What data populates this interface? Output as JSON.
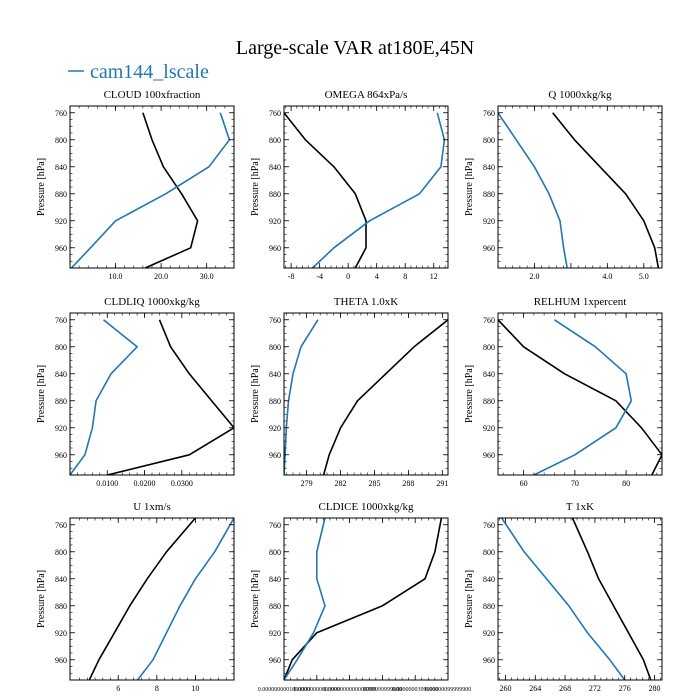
{
  "figure": {
    "title": "Large-scale VAR at180E,45N",
    "legend": [
      {
        "name": "cam144_lscale",
        "color": "#1f77b4"
      }
    ]
  },
  "colors": {
    "black_series": "#000000",
    "blue_series": "#1f77b4"
  },
  "chart_data": [
    {
      "type": "line",
      "title": "CLOUD  100xfraction",
      "ylabel": "Pressure [hPa]",
      "ylim": [
        990,
        750
      ],
      "yticks": [
        760,
        800,
        840,
        880,
        920,
        960
      ],
      "ytick_labels": [
        "760",
        "800",
        "840",
        "880",
        "920",
        "960"
      ],
      "xlim": [
        0,
        36
      ],
      "xticks": [
        10,
        20,
        30
      ],
      "xtick_labels": [
        "10.0",
        "20.0",
        "30.0"
      ],
      "y": [
        760,
        800,
        840,
        880,
        920,
        960,
        990
      ],
      "series": [
        {
          "color": "#000000",
          "values": [
            16,
            18,
            20.5,
            24.5,
            28,
            26.5,
            16.5
          ]
        },
        {
          "color": "#1f77b4",
          "values": [
            33,
            35,
            30.5,
            21,
            10,
            4.5,
            0.3
          ]
        }
      ]
    },
    {
      "type": "line",
      "title": "OMEGA  864xPa/s",
      "ylabel": "Pressure [hPa]",
      "ylim": [
        990,
        750
      ],
      "yticks": [
        760,
        800,
        840,
        880,
        920,
        960
      ],
      "ytick_labels": [
        "760",
        "800",
        "840",
        "880",
        "920",
        "960"
      ],
      "xlim": [
        -9,
        14
      ],
      "xticks": [
        -8,
        -4,
        0,
        4,
        8,
        12
      ],
      "xtick_labels": [
        "-8",
        "-4",
        "0",
        "4",
        "8",
        "12"
      ],
      "y": [
        760,
        800,
        840,
        880,
        920,
        960,
        990
      ],
      "series": [
        {
          "color": "#000000",
          "values": [
            -9,
            -6,
            -2,
            1,
            2.5,
            2.5,
            1
          ]
        },
        {
          "color": "#1f77b4",
          "values": [
            12.5,
            13.5,
            13,
            10,
            3,
            -2,
            -5
          ]
        }
      ]
    },
    {
      "type": "line",
      "title": "Q  1000xkg/kg",
      "ylabel": "Pressure [hPa]",
      "ylim": [
        990,
        750
      ],
      "yticks": [
        760,
        800,
        840,
        880,
        920,
        960
      ],
      "ytick_labels": [
        "760",
        "800",
        "840",
        "880",
        "920",
        "960"
      ],
      "xlim": [
        1,
        5.5
      ],
      "xticks": [
        2,
        3,
        4,
        5
      ],
      "xtick_labels": [
        "2.0",
        "",
        "4.0",
        "5.0"
      ],
      "y": [
        760,
        800,
        840,
        880,
        920,
        960,
        990
      ],
      "series": [
        {
          "color": "#000000",
          "values": [
            2.5,
            3.1,
            3.8,
            4.5,
            5.0,
            5.3,
            5.4
          ]
        },
        {
          "color": "#1f77b4",
          "values": [
            1.0,
            1.5,
            2.0,
            2.4,
            2.7,
            2.8,
            2.9
          ]
        }
      ]
    },
    {
      "type": "line",
      "title": "CLDLIQ  1000xkg/kg",
      "ylabel": "Pressure [hPa]",
      "ylim": [
        990,
        750
      ],
      "yticks": [
        760,
        800,
        840,
        880,
        920,
        960
      ],
      "ytick_labels": [
        "760",
        "800",
        "840",
        "880",
        "920",
        "960"
      ],
      "xlim": [
        0,
        0.044
      ],
      "xticks": [
        0.01,
        0.02,
        0.03
      ],
      "xtick_labels": [
        "0.0100",
        "0.0200",
        "0.0300"
      ],
      "y": [
        760,
        800,
        840,
        880,
        920,
        960,
        990
      ],
      "series": [
        {
          "color": "#000000",
          "values": [
            0.024,
            0.027,
            0.032,
            0.038,
            0.044,
            0.032,
            0.01
          ]
        },
        {
          "color": "#1f77b4",
          "values": [
            0.009,
            0.018,
            0.011,
            0.007,
            0.006,
            0.004,
            0.0
          ]
        }
      ]
    },
    {
      "type": "line",
      "title": "THETA  1.0xK",
      "ylabel": "Pressure [hPa]",
      "ylim": [
        990,
        750
      ],
      "yticks": [
        760,
        800,
        840,
        880,
        920,
        960
      ],
      "ytick_labels": [
        "760",
        "800",
        "840",
        "880",
        "920",
        "960"
      ],
      "xlim": [
        277,
        291.5
      ],
      "xticks": [
        279,
        282,
        285,
        288,
        291
      ],
      "xtick_labels": [
        "279",
        "282",
        "285",
        "288",
        "291"
      ],
      "y": [
        760,
        800,
        840,
        880,
        920,
        960,
        990
      ],
      "series": [
        {
          "color": "#000000",
          "values": [
            291.5,
            288.5,
            286,
            283.5,
            282,
            281,
            280.5
          ]
        },
        {
          "color": "#1f77b4",
          "values": [
            280,
            278.5,
            277.8,
            277.4,
            277.2,
            277.1,
            277.0
          ]
        }
      ]
    },
    {
      "type": "line",
      "title": "RELHUM  1xpercent",
      "ylabel": "Pressure [hPa]",
      "ylim": [
        990,
        750
      ],
      "yticks": [
        760,
        800,
        840,
        880,
        920,
        960
      ],
      "ytick_labels": [
        "760",
        "800",
        "840",
        "880",
        "920",
        "960"
      ],
      "xlim": [
        55,
        87
      ],
      "xticks": [
        60,
        70,
        80
      ],
      "xtick_labels": [
        "60",
        "70",
        "80"
      ],
      "y": [
        760,
        800,
        840,
        880,
        920,
        960,
        990
      ],
      "series": [
        {
          "color": "#000000",
          "values": [
            55,
            60,
            68,
            78,
            83,
            87,
            85
          ]
        },
        {
          "color": "#1f77b4",
          "values": [
            66,
            74,
            80,
            81,
            78,
            70,
            62
          ]
        }
      ]
    },
    {
      "type": "line",
      "title": "U  1xm/s",
      "ylabel": "Pressure [hPa]",
      "ylim": [
        990,
        750
      ],
      "yticks": [
        760,
        800,
        840,
        880,
        920,
        960
      ],
      "ytick_labels": [
        "760",
        "800",
        "840",
        "880",
        "920",
        "960"
      ],
      "xlim": [
        3.5,
        12
      ],
      "xticks": [
        6,
        8,
        10
      ],
      "xtick_labels": [
        "6",
        "8",
        "10"
      ],
      "y": [
        750,
        800,
        840,
        880,
        920,
        960,
        990
      ],
      "series": [
        {
          "color": "#000000",
          "values": [
            10,
            8.5,
            7.5,
            6.6,
            5.8,
            5,
            4.5
          ]
        },
        {
          "color": "#1f77b4",
          "values": [
            12,
            11,
            10,
            9.2,
            8.5,
            7.8,
            7
          ]
        }
      ]
    },
    {
      "type": "line",
      "title": "CLDICE  1000xkg/kg",
      "ylabel": "Pressure [hPa]",
      "ylim": [
        990,
        750
      ],
      "yticks": [
        760,
        800,
        840,
        880,
        920,
        960
      ],
      "ytick_labels": [
        "760",
        "800",
        "840",
        "880",
        "920",
        "960"
      ],
      "xlim": [
        0,
        1
      ],
      "xticks": [
        0,
        0.2,
        0.4,
        0.6,
        0.8,
        1
      ],
      "xtick_labels": [
        "0.0000000001000000",
        "0.00000000003999",
        "0.0000000000000399",
        "9999999999000",
        "0.00000003999999",
        "0.00000099999900"
      ],
      "y": [
        750,
        800,
        840,
        880,
        920,
        960,
        990
      ],
      "series": [
        {
          "color": "#000000",
          "values": [
            0.96,
            0.92,
            0.86,
            0.6,
            0.2,
            0.05,
            0.0
          ]
        },
        {
          "color": "#1f77b4",
          "values": [
            0.25,
            0.2,
            0.2,
            0.25,
            0.18,
            0.08,
            0.0
          ]
        }
      ]
    },
    {
      "type": "line",
      "title": "T  1xK",
      "ylabel": "Pressure [hPa]",
      "ylim": [
        990,
        750
      ],
      "yticks": [
        760,
        800,
        840,
        880,
        920,
        960
      ],
      "ytick_labels": [
        "760",
        "800",
        "840",
        "880",
        "920",
        "960"
      ],
      "xlim": [
        259,
        281
      ],
      "xticks": [
        260,
        264,
        268,
        272,
        276,
        280
      ],
      "xtick_labels": [
        "260",
        "264",
        "268",
        "272",
        "276",
        "280"
      ],
      "y": [
        750,
        800,
        840,
        880,
        920,
        960,
        990
      ],
      "series": [
        {
          "color": "#000000",
          "values": [
            269,
            271,
            272.5,
            274.5,
            276.5,
            278.5,
            279.5
          ]
        },
        {
          "color": "#1f77b4",
          "values": [
            259.5,
            262.5,
            265.5,
            268.5,
            271,
            274,
            276
          ]
        }
      ]
    }
  ]
}
